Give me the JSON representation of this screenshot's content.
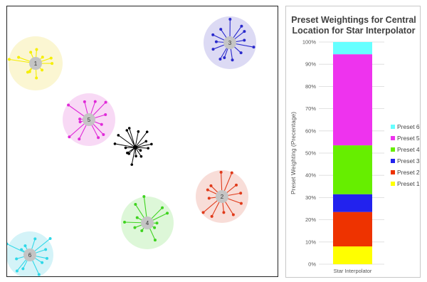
{
  "scatter_panel": {
    "presets": [
      {
        "label": "1",
        "color": "#f5ee00",
        "halo": "#fbf6d2"
      },
      {
        "label": "2",
        "color": "#e03a1a",
        "halo": "#f8ddd8"
      },
      {
        "label": "3",
        "color": "#2a2acc",
        "halo": "#dcdaf4"
      },
      {
        "label": "4",
        "color": "#3fd320",
        "halo": "#ddf7d8"
      },
      {
        "label": "5",
        "color": "#e02ad8",
        "halo": "#f8d9f5"
      },
      {
        "label": "6",
        "color": "#2ed8e8",
        "halo": "#d4f3f8"
      }
    ],
    "central_color": "#000000"
  },
  "chart_data": {
    "type": "bar",
    "stacked": true,
    "title": "Preset Weightings for Central Location for Star Interpolator",
    "categories": [
      "Star Interpolator"
    ],
    "ylabel": "Preset Weighting (Precentage)",
    "ylim": [
      0,
      100
    ],
    "yticks": [
      "0%",
      "10%",
      "20%",
      "30%",
      "40%",
      "50%",
      "60%",
      "70%",
      "80%",
      "90%",
      "100%"
    ],
    "grid": true,
    "legend_position": "right",
    "series": [
      {
        "name": "Preset 1",
        "values": [
          8
        ],
        "color": "#ffff00"
      },
      {
        "name": "Preset 2",
        "values": [
          15.5
        ],
        "color": "#ee3300"
      },
      {
        "name": "Preset 3",
        "values": [
          8
        ],
        "color": "#2222ee"
      },
      {
        "name": "Preset 4",
        "values": [
          22
        ],
        "color": "#66ee00"
      },
      {
        "name": "Preset 5",
        "values": [
          41
        ],
        "color": "#ee33ee"
      },
      {
        "name": "Preset 6",
        "values": [
          5.5
        ],
        "color": "#66ffff"
      }
    ]
  }
}
